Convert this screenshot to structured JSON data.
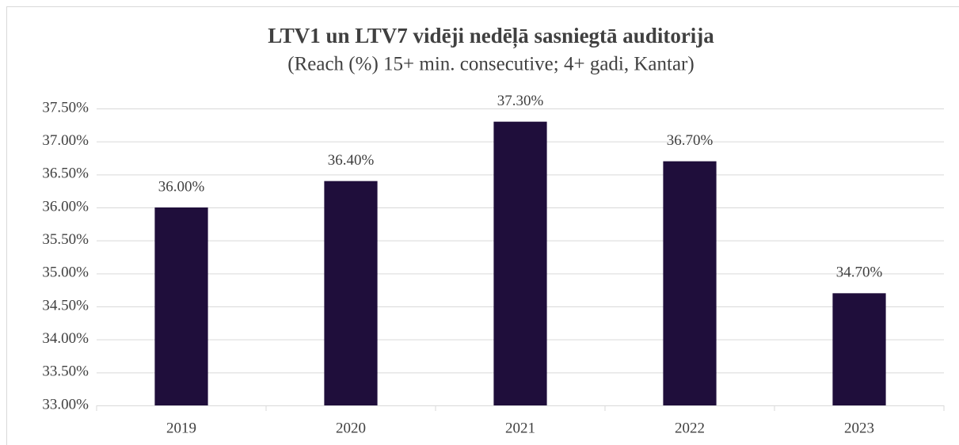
{
  "chart_data": {
    "type": "bar",
    "title": "LTV1 un LTV7 vidēji nedēļā sasniegtā auditorija",
    "subtitle": "(Reach (%) 15+ min. consecutive; 4+ gadi, Kantar)",
    "categories": [
      "2019",
      "2020",
      "2021",
      "2022",
      "2023"
    ],
    "values": [
      36.0,
      36.4,
      37.3,
      36.7,
      34.7
    ],
    "value_labels": [
      "36.00%",
      "36.40%",
      "37.30%",
      "36.70%",
      "34.70%"
    ],
    "color": "#1f0e3b",
    "ylim": [
      33,
      37.5
    ],
    "yticks": [
      {
        "value": 33,
        "label": "33.00%"
      },
      {
        "value": 33.5,
        "label": "33.50%"
      },
      {
        "value": 34,
        "label": "34.00%"
      },
      {
        "value": 34.5,
        "label": "34.50%"
      },
      {
        "value": 35,
        "label": "35.00%"
      },
      {
        "value": 35.5,
        "label": "35.50%"
      },
      {
        "value": 36,
        "label": "36.00%"
      },
      {
        "value": 36.5,
        "label": "36.50%"
      },
      {
        "value": 37,
        "label": "37.00%"
      },
      {
        "value": 37.5,
        "label": "37.50%"
      }
    ],
    "grid": true
  }
}
